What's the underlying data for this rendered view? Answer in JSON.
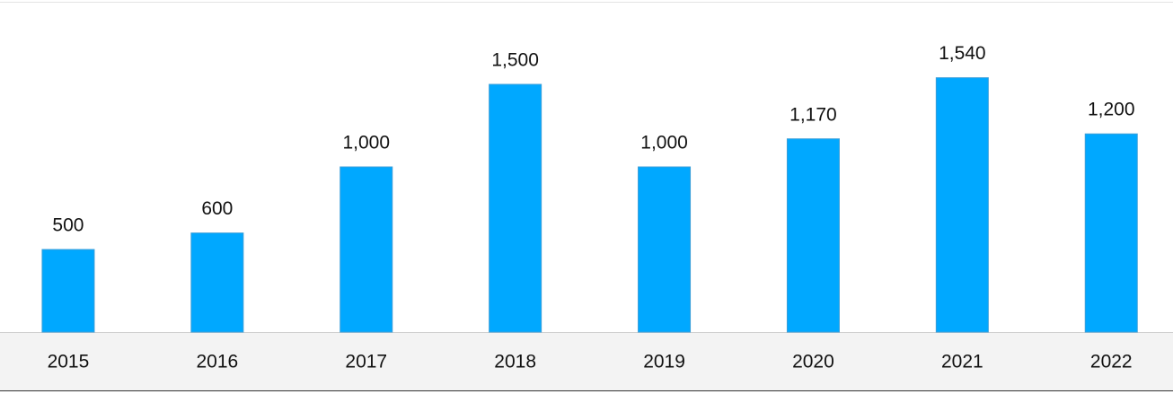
{
  "chart_data": {
    "type": "bar",
    "categories": [
      "2015",
      "2016",
      "2017",
      "2018",
      "2019",
      "2020",
      "2021",
      "2022"
    ],
    "values": [
      500,
      600,
      1000,
      1500,
      1000,
      1170,
      1540,
      1200
    ],
    "value_labels": [
      "500",
      "600",
      "1,000",
      "1,500",
      "1,000",
      "1,170",
      "1,540",
      "1,200"
    ],
    "color": "#00a8ff",
    "ylim": [
      0,
      2000
    ]
  }
}
